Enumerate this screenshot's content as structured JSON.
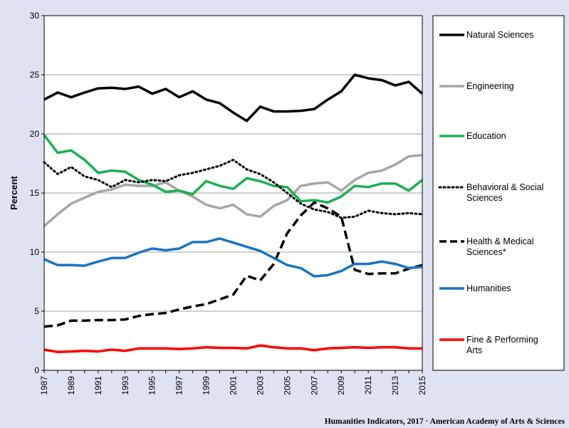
{
  "footer": {
    "credit": "Humanities Indicators, 2017 · American Academy of Arts & Sciences"
  },
  "chart_data": {
    "type": "line",
    "title": "",
    "xlabel": "",
    "ylabel": "Percent",
    "ylim": [
      0,
      30
    ],
    "yticks": [
      "0",
      "5",
      "10",
      "15",
      "20",
      "25",
      "30"
    ],
    "xlim": [
      1987,
      2015
    ],
    "xticks": [
      "1987",
      "1989",
      "1991",
      "1993",
      "1995",
      "1997",
      "1999",
      "2001",
      "2003",
      "2005",
      "2007",
      "2009",
      "2011",
      "2013",
      "2015"
    ],
    "grid": "horizontal",
    "legend_position": "right",
    "x": [
      1987,
      1988,
      1989,
      1990,
      1991,
      1992,
      1993,
      1994,
      1995,
      1996,
      1997,
      1998,
      1999,
      2000,
      2001,
      2002,
      2003,
      2004,
      2005,
      2006,
      2007,
      2008,
      2009,
      2010,
      2011,
      2012,
      2013,
      2014,
      2015
    ],
    "series": [
      {
        "name": "Natural Sciences",
        "color": "#000000",
        "style": "solid",
        "values": [
          22.9,
          23.5,
          23.1,
          23.5,
          23.85,
          23.9,
          23.8,
          24.0,
          23.4,
          23.8,
          23.1,
          23.6,
          22.9,
          22.6,
          21.8,
          21.1,
          22.3,
          21.9,
          21.9,
          21.95,
          22.1,
          22.9,
          23.6,
          25.0,
          24.7,
          24.55,
          24.1,
          24.4,
          23.4
        ]
      },
      {
        "name": "Engineering",
        "color": "#a6a6a6",
        "style": "solid",
        "values": [
          12.2,
          13.2,
          14.1,
          14.6,
          15.1,
          15.3,
          15.7,
          15.6,
          15.6,
          15.9,
          15.2,
          14.7,
          14.0,
          13.7,
          14.0,
          13.2,
          13.0,
          13.9,
          14.4,
          15.6,
          15.8,
          15.9,
          15.2,
          16.1,
          16.7,
          16.9,
          17.4,
          18.1,
          18.2
        ]
      },
      {
        "name": "Education",
        "color": "#1aaf54",
        "style": "solid",
        "values": [
          19.9,
          18.4,
          18.6,
          17.8,
          16.7,
          16.9,
          16.8,
          16.1,
          15.7,
          15.1,
          15.2,
          14.9,
          16.0,
          15.6,
          15.35,
          16.25,
          16.0,
          15.6,
          15.5,
          14.3,
          14.4,
          14.2,
          14.7,
          15.6,
          15.5,
          15.8,
          15.8,
          15.2,
          16.1
        ]
      },
      {
        "name": "Behavioral & Social Sciences",
        "color": "#000000",
        "style": "dotted",
        "values": [
          17.6,
          16.6,
          17.2,
          16.4,
          16.1,
          15.5,
          16.1,
          15.9,
          16.1,
          16.0,
          16.5,
          16.7,
          17.0,
          17.3,
          17.8,
          17.0,
          16.6,
          15.9,
          15.0,
          14.1,
          13.6,
          13.4,
          12.9,
          13.0,
          13.5,
          13.3,
          13.2,
          13.3,
          13.2
        ]
      },
      {
        "name": "Health & Medical Sciences*",
        "color": "#000000",
        "style": "dashed",
        "values": [
          3.7,
          3.8,
          4.2,
          4.2,
          4.25,
          4.25,
          4.3,
          4.6,
          4.75,
          4.85,
          5.15,
          5.4,
          5.6,
          6.0,
          6.4,
          8.0,
          7.6,
          9.0,
          11.6,
          13.1,
          14.2,
          13.7,
          13.0,
          8.5,
          8.15,
          8.2,
          8.2,
          8.6,
          8.9
        ]
      },
      {
        "name": "Humanities",
        "color": "#1a73c2",
        "style": "solid",
        "values": [
          9.4,
          8.9,
          8.9,
          8.85,
          9.2,
          9.5,
          9.5,
          9.95,
          10.3,
          10.15,
          10.3,
          10.85,
          10.85,
          11.15,
          10.8,
          10.45,
          10.1,
          9.5,
          8.9,
          8.65,
          7.95,
          8.05,
          8.4,
          9.0,
          9.0,
          9.2,
          9.0,
          8.65,
          8.75
        ]
      },
      {
        "name": "Fine & Performing Arts",
        "color": "#ff0000",
        "style": "solid",
        "values": [
          1.75,
          1.55,
          1.6,
          1.65,
          1.6,
          1.75,
          1.65,
          1.85,
          1.85,
          1.85,
          1.8,
          1.85,
          1.95,
          1.9,
          1.9,
          1.85,
          2.1,
          1.95,
          1.85,
          1.85,
          1.7,
          1.85,
          1.9,
          1.95,
          1.9,
          1.95,
          1.95,
          1.85,
          1.85
        ]
      }
    ],
    "legend_lines": [
      [
        "Natural Sciences"
      ],
      [
        "Engineering"
      ],
      [
        "Education"
      ],
      [
        "Behavioral & Social",
        "Sciences"
      ],
      [
        "Health & Medical",
        "Sciences*"
      ],
      [
        "Humanities"
      ],
      [
        "Fine & Performing",
        "Arts"
      ]
    ]
  }
}
